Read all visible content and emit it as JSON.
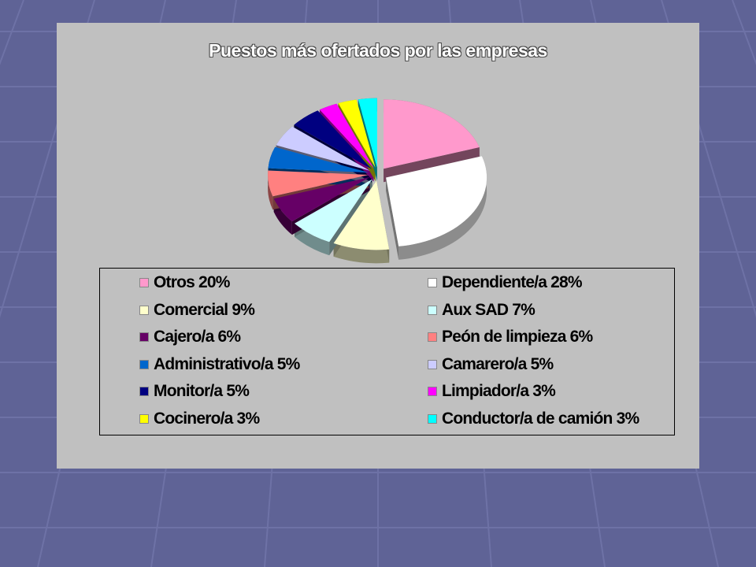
{
  "chart_data": {
    "type": "pie",
    "title": "Puestos más ofertados por las empresas",
    "slices": [
      {
        "label": "Otros 20%",
        "value": 20,
        "color": "#ff99cc"
      },
      {
        "label": "Dependiente/a 28%",
        "value": 28,
        "color": "#ffffff"
      },
      {
        "label": "Comercial 9%",
        "value": 9,
        "color": "#ffffcc"
      },
      {
        "label": "Aux SAD 7%",
        "value": 7,
        "color": "#ccffff"
      },
      {
        "label": "Cajero/a 6%",
        "value": 6,
        "color": "#660066"
      },
      {
        "label": "Peón de limpieza 6%",
        "value": 6,
        "color": "#ff8080"
      },
      {
        "label": "Administrativo/a 5%",
        "value": 5,
        "color": "#0066cc"
      },
      {
        "label": "Camarero/a 5%",
        "value": 5,
        "color": "#ccccff"
      },
      {
        "label": "Monitor/a 5%",
        "value": 5,
        "color": "#000080"
      },
      {
        "label": "Limpiador/a 3%",
        "value": 3,
        "color": "#ff00ff"
      },
      {
        "label": "Cocinero/a 3%",
        "value": 3,
        "color": "#ffff00"
      },
      {
        "label": "Conductor/a de camión 3%",
        "value": 3,
        "color": "#00ffff"
      }
    ],
    "legend_placement": "bottom"
  }
}
